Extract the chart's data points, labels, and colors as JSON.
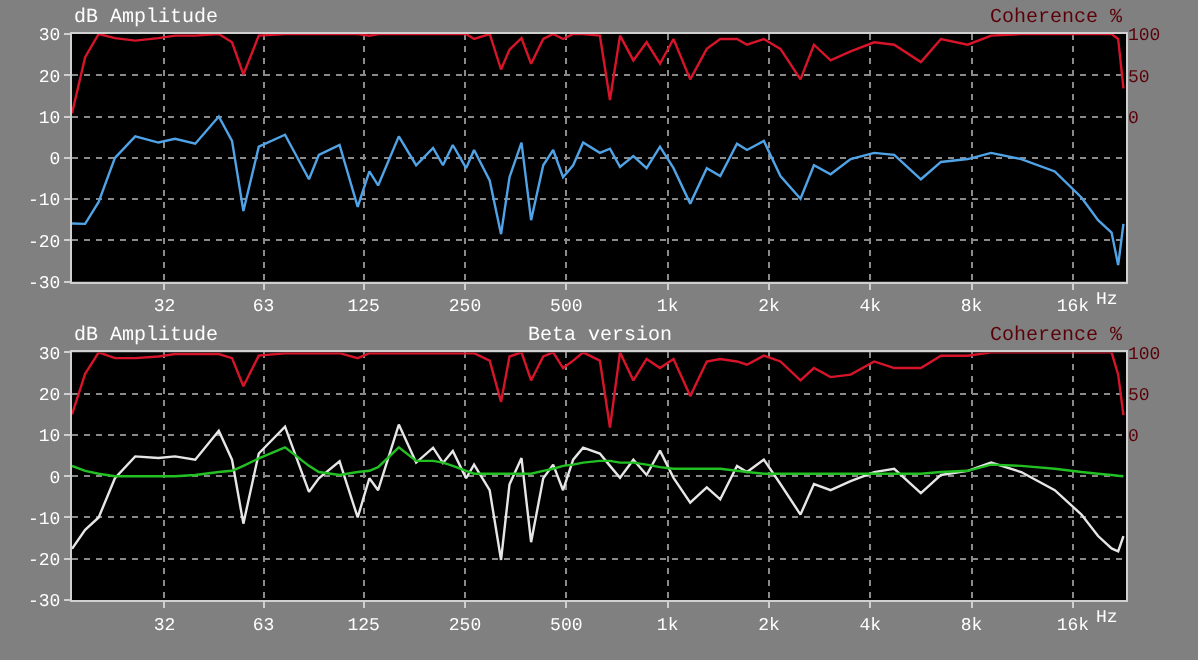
{
  "chart_data": [
    {
      "type": "line",
      "ylabel": "dB Amplitude",
      "y2label": "Coherence %",
      "xlabel": "Hz",
      "log": "x",
      "grid": true,
      "marker": "none",
      "line_style": "solid",
      "xlim": [
        17,
        23000
      ],
      "xticks": [
        32,
        63,
        125,
        250,
        500,
        {
          "value": 1000,
          "label": "1k"
        },
        {
          "value": 2000,
          "label": "2k"
        },
        {
          "value": 4000,
          "label": "4k"
        },
        {
          "value": 8000,
          "label": "8k"
        },
        {
          "value": 16000,
          "label": "16k"
        }
      ],
      "ylim": [
        -30,
        30
      ],
      "yticks": [
        -30,
        -20,
        -10,
        0,
        10,
        20,
        30
      ],
      "y2lim": [
        -200,
        100
      ],
      "y2ticks": [
        0,
        50,
        100
      ],
      "x": [
        17.0,
        18.6,
        20.4,
        22.8,
        26.2,
        30.7,
        34.4,
        39.5,
        46.4,
        50.8,
        54.9,
        61,
        73,
        86,
        92,
        106,
        120,
        130,
        138,
        159,
        179,
        201,
        215,
        230,
        252,
        266,
        296,
        320,
        339,
        368,
        393,
        427,
        457,
        489,
        524,
        561,
        629,
        674,
        722,
        791,
        866,
        949,
        1041,
        1167,
        1307,
        1433,
        1607,
        1721,
        1931,
        2163,
        2481,
        2721,
        3049,
        3497,
        4107,
        4712,
        5654,
        6486,
        7788,
        9142,
        11230,
        14130,
        16960,
        19000,
        20840,
        21800,
        22600
      ],
      "series": [
        {
          "color": "#d8142a",
          "axis": "y2",
          "values": [
            4,
            72,
            100,
            95,
            92,
            95,
            98,
            98,
            100,
            90,
            51,
            98,
            100,
            100,
            100,
            100,
            100,
            98,
            100,
            100,
            100,
            100,
            100,
            100,
            100,
            94,
            100,
            57,
            81,
            95,
            64,
            94,
            100,
            94,
            100,
            100,
            98,
            20,
            98,
            68,
            90,
            64,
            94,
            45,
            82,
            94,
            94,
            87,
            94,
            82,
            45,
            87,
            68,
            79,
            90,
            87,
            66,
            94,
            87,
            98,
            100,
            100,
            100,
            100,
            100,
            94,
            34
          ]
        },
        {
          "color": "#4fa3e6",
          "values": [
            -15.9,
            -16,
            -10.7,
            0,
            5.2,
            3.7,
            4.6,
            3.4,
            10,
            4.1,
            -12.9,
            2.7,
            5.6,
            -5.2,
            0.7,
            3.1,
            -11.9,
            -3.3,
            -6.7,
            5.2,
            -1.8,
            2.4,
            -1.8,
            3.1,
            -2.5,
            1.9,
            -5.5,
            -18.5,
            -4.7,
            3.7,
            -15.1,
            -1.8,
            1.9,
            -4.7,
            -1.8,
            3.7,
            1.2,
            2.2,
            -2.2,
            0.4,
            -2.5,
            2.7,
            -2.5,
            -11.1,
            -2.5,
            -4.4,
            3.4,
            1.9,
            4.1,
            -4.4,
            -9.9,
            -1.8,
            -4,
            -0.3,
            1.2,
            0.7,
            -5.2,
            -1,
            -0.3,
            1.2,
            -0.3,
            -3.3,
            -9.6,
            -15.1,
            -18.1,
            -26,
            -16
          ]
        }
      ]
    },
    {
      "type": "line",
      "title": "Beta version",
      "ylabel": "dB Amplitude",
      "y2label": "Coherence %",
      "xlabel": "Hz",
      "log": "x",
      "grid": true,
      "marker": "none",
      "line_style": "solid",
      "xlim": [
        17,
        23000
      ],
      "xticks": [
        32,
        63,
        125,
        250,
        500,
        {
          "value": 1000,
          "label": "1k"
        },
        {
          "value": 2000,
          "label": "2k"
        },
        {
          "value": 4000,
          "label": "4k"
        },
        {
          "value": 8000,
          "label": "8k"
        },
        {
          "value": 16000,
          "label": "16k"
        }
      ],
      "ylim": [
        -30,
        30
      ],
      "yticks": [
        -30,
        -20,
        -10,
        0,
        10,
        20,
        30
      ],
      "y2lim": [
        -200,
        100
      ],
      "y2ticks": [
        0,
        50,
        100
      ],
      "x": [
        17.0,
        18.6,
        20.4,
        22.8,
        26.2,
        30.7,
        34.4,
        39.5,
        46.4,
        50.8,
        54.9,
        61,
        73,
        86,
        92,
        106,
        120,
        130,
        138,
        159,
        179,
        201,
        215,
        230,
        252,
        266,
        296,
        320,
        339,
        368,
        393,
        427,
        457,
        489,
        524,
        561,
        629,
        674,
        722,
        791,
        866,
        949,
        1041,
        1167,
        1307,
        1433,
        1607,
        1721,
        1931,
        2163,
        2481,
        2721,
        3049,
        3497,
        4107,
        4712,
        5654,
        6486,
        7788,
        9142,
        11230,
        14130,
        16960,
        19000,
        20840,
        21800,
        22600
      ],
      "series": [
        {
          "color": "#d8142a",
          "axis": "y2",
          "values": [
            25,
            74,
            100,
            93,
            93,
            95,
            98,
            98,
            98,
            93,
            59,
            96,
            99,
            99,
            99,
            99,
            93,
            99,
            99,
            99,
            99,
            99,
            99,
            99,
            99,
            99,
            90,
            40,
            95,
            100,
            66,
            95,
            100,
            81,
            90,
            100,
            90,
            9,
            100,
            66,
            92,
            81,
            92,
            47,
            89,
            92,
            89,
            85,
            96,
            89,
            66,
            81,
            70,
            73,
            89,
            81,
            81,
            96,
            96,
            100,
            100,
            100,
            100,
            100,
            100,
            73,
            24
          ]
        },
        {
          "color": "#e6e6e6",
          "values": [
            -17.6,
            -13,
            -10,
            -0.5,
            4.8,
            4.4,
            4.8,
            4,
            11,
            4,
            -11.5,
            5.5,
            12,
            -3.8,
            -0.5,
            3.6,
            -10,
            -0.5,
            -3.4,
            12.5,
            3.3,
            6.9,
            3.2,
            6.1,
            -0.5,
            2.8,
            -3.4,
            -20.3,
            -2,
            4.4,
            -16,
            -0.5,
            2.8,
            -3.4,
            4,
            6.9,
            5.5,
            2.5,
            -0.4,
            4,
            0.3,
            6.2,
            -0.4,
            -6.4,
            -2.7,
            -5.6,
            2.5,
            1,
            4,
            -1.9,
            -9.3,
            -1.9,
            -3.4,
            -1.2,
            1,
            1.8,
            -4.1,
            0.3,
            1.3,
            3.3,
            1,
            -3.4,
            -9.3,
            -14.5,
            -17.5,
            -18.2,
            -14.5
          ]
        },
        {
          "color": "#22c022",
          "values": [
            2.5,
            1.3,
            0.6,
            0,
            0,
            0,
            0,
            0.3,
            1,
            1.3,
            2.5,
            4.3,
            7,
            2.5,
            1,
            0.3,
            1,
            1.3,
            2.2,
            7,
            3.7,
            3.7,
            3.3,
            2.5,
            1.3,
            0.6,
            0.6,
            0.6,
            0.6,
            0.6,
            0.6,
            1.3,
            1.8,
            2.5,
            2.8,
            3.3,
            3.7,
            3.7,
            3.3,
            3.3,
            2.8,
            2.2,
            1.8,
            1.8,
            1.8,
            1.8,
            1.3,
            1,
            0.6,
            0.6,
            0.6,
            0.6,
            0.6,
            0.6,
            0.6,
            0.6,
            0.6,
            1,
            1.3,
            2.8,
            2.5,
            1.8,
            1,
            0.6,
            0.3,
            0.1,
            0
          ]
        }
      ]
    }
  ]
}
